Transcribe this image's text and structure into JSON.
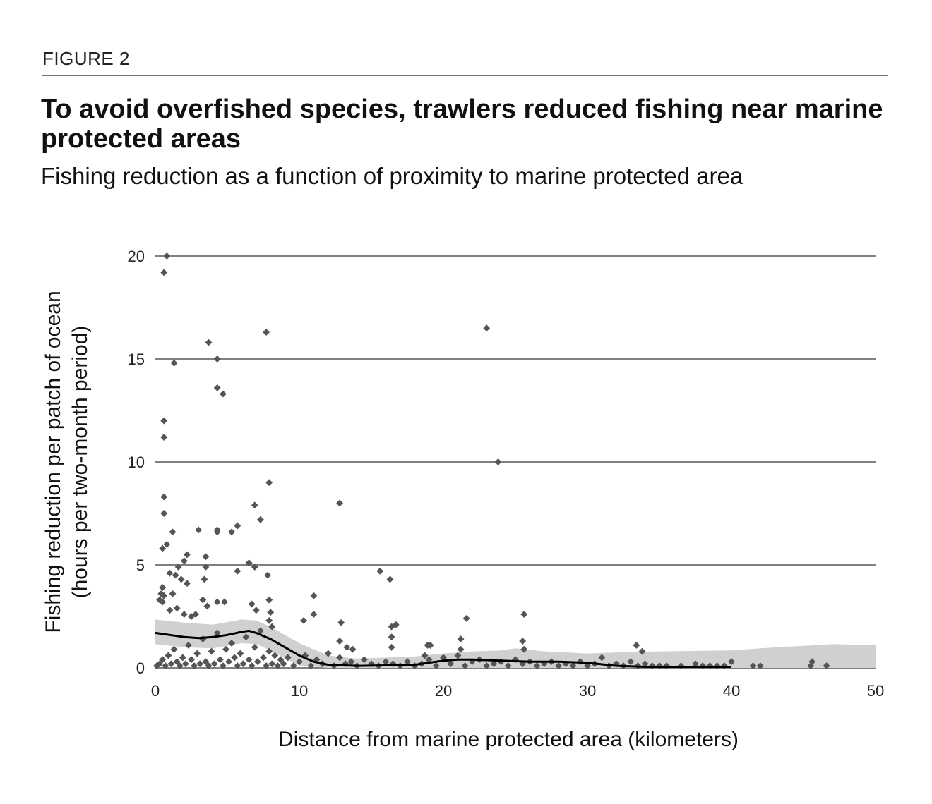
{
  "figure_label": "FIGURE 2",
  "chart_data": {
    "type": "scatter",
    "title": "To avoid overfished species, trawlers reduced fishing near marine protected areas",
    "subtitle": "Fishing reduction as a function of proximity to marine protected area",
    "xlabel": "Distance from marine protected area (kilometers)",
    "ylabel_line1": "Fishing reduction per patch of ocean",
    "ylabel_line2": "(hours per two-month period)",
    "xlim": [
      0,
      50
    ],
    "ylim": [
      0,
      20
    ],
    "x_ticks": [
      0,
      10,
      20,
      30,
      40,
      50
    ],
    "y_ticks": [
      0,
      5,
      10,
      15,
      20
    ],
    "grid": "horizontal",
    "colors": {
      "points": "#555555",
      "trend": "#000000",
      "band": "#d0d0d0",
      "grid": "#808080"
    },
    "points": [
      [
        0.8,
        20
      ],
      [
        0.6,
        19.2
      ],
      [
        1.3,
        14.8
      ],
      [
        0.6,
        12
      ],
      [
        0.6,
        11.2
      ],
      [
        0.6,
        8.3
      ],
      [
        0.6,
        7.5
      ],
      [
        0.8,
        6
      ],
      [
        0.5,
        5.8
      ],
      [
        1.2,
        6.6
      ],
      [
        1.6,
        4.9
      ],
      [
        1.4,
        4.5
      ],
      [
        1.0,
        4.6
      ],
      [
        2.0,
        5.2
      ],
      [
        2.2,
        5.5
      ],
      [
        1.8,
        4.3
      ],
      [
        2.2,
        4.1
      ],
      [
        0.5,
        3.9
      ],
      [
        0.4,
        3.6
      ],
      [
        0.3,
        3.3
      ],
      [
        0.6,
        3.5
      ],
      [
        1.2,
        3.6
      ],
      [
        0.5,
        3.2
      ],
      [
        1.0,
        2.8
      ],
      [
        1.5,
        2.9
      ],
      [
        2.0,
        2.6
      ],
      [
        2.5,
        2.5
      ],
      [
        2.8,
        2.6
      ],
      [
        3.0,
        6.7
      ],
      [
        3.5,
        5.4
      ],
      [
        3.5,
        4.9
      ],
      [
        3.4,
        4.3
      ],
      [
        3.3,
        3.3
      ],
      [
        3.6,
        3.0
      ],
      [
        3.7,
        15.8
      ],
      [
        4.3,
        15.0
      ],
      [
        4.3,
        13.6
      ],
      [
        4.7,
        13.3
      ],
      [
        4.3,
        6.7
      ],
      [
        4.3,
        6.6
      ],
      [
        5.3,
        6.6
      ],
      [
        5.7,
        6.9
      ],
      [
        4.3,
        3.2
      ],
      [
        4.8,
        3.2
      ],
      [
        5.7,
        4.7
      ],
      [
        6.5,
        5.1
      ],
      [
        6.9,
        4.9
      ],
      [
        7.0,
        2.8
      ],
      [
        6.7,
        3.1
      ],
      [
        6.9,
        7.9
      ],
      [
        7.3,
        7.2
      ],
      [
        7.7,
        16.3
      ],
      [
        7.9,
        9.0
      ],
      [
        7.8,
        4.5
      ],
      [
        7.9,
        3.3
      ],
      [
        8.0,
        2.7
      ],
      [
        8.1,
        2.0
      ],
      [
        7.9,
        2.3
      ],
      [
        11.0,
        3.5
      ],
      [
        10.3,
        2.3
      ],
      [
        11.0,
        2.6
      ],
      [
        12.8,
        8.0
      ],
      [
        12.9,
        2.2
      ],
      [
        12.8,
        1.3
      ],
      [
        13.3,
        1.0
      ],
      [
        13.7,
        0.9
      ],
      [
        15.6,
        4.7
      ],
      [
        16.3,
        4.3
      ],
      [
        16.4,
        2.0
      ],
      [
        16.7,
        2.1
      ],
      [
        16.4,
        1.5
      ],
      [
        16.4,
        1.0
      ],
      [
        18.9,
        1.1
      ],
      [
        19.1,
        1.1
      ],
      [
        18.7,
        0.6
      ],
      [
        21.2,
        1.4
      ],
      [
        21.6,
        2.4
      ],
      [
        21.2,
        0.9
      ],
      [
        23.0,
        16.5
      ],
      [
        23.8,
        10.0
      ],
      [
        25.6,
        2.6
      ],
      [
        25.5,
        1.3
      ],
      [
        25.6,
        0.9
      ],
      [
        33.4,
        1.1
      ],
      [
        33.8,
        0.8
      ],
      [
        40.0,
        0.3
      ],
      [
        45.6,
        0.3
      ],
      [
        46.6,
        0.1
      ],
      [
        0.1,
        0.1
      ],
      [
        0.3,
        0.2
      ],
      [
        0.5,
        0.4
      ],
      [
        0.7,
        0.1
      ],
      [
        0.9,
        0.6
      ],
      [
        1.1,
        0.2
      ],
      [
        1.3,
        0.9
      ],
      [
        1.5,
        0.3
      ],
      [
        1.7,
        0.1
      ],
      [
        1.9,
        0.5
      ],
      [
        2.1,
        0.2
      ],
      [
        2.3,
        1.1
      ],
      [
        2.5,
        0.4
      ],
      [
        2.7,
        0.1
      ],
      [
        2.9,
        0.7
      ],
      [
        3.1,
        0.2
      ],
      [
        3.3,
        1.4
      ],
      [
        3.5,
        0.3
      ],
      [
        3.7,
        0.1
      ],
      [
        3.9,
        0.8
      ],
      [
        4.1,
        0.2
      ],
      [
        4.3,
        1.7
      ],
      [
        4.5,
        0.4
      ],
      [
        4.7,
        0.1
      ],
      [
        4.9,
        0.9
      ],
      [
        5.1,
        0.3
      ],
      [
        5.3,
        1.2
      ],
      [
        5.5,
        0.5
      ],
      [
        5.7,
        0.1
      ],
      [
        5.9,
        0.7
      ],
      [
        6.1,
        0.2
      ],
      [
        6.3,
        1.5
      ],
      [
        6.5,
        0.4
      ],
      [
        6.7,
        0.1
      ],
      [
        6.9,
        1.0
      ],
      [
        7.1,
        0.3
      ],
      [
        7.3,
        1.8
      ],
      [
        7.5,
        0.5
      ],
      [
        7.7,
        0.1
      ],
      [
        7.9,
        0.8
      ],
      [
        8.1,
        0.2
      ],
      [
        8.3,
        0.6
      ],
      [
        8.5,
        0.1
      ],
      [
        8.7,
        0.4
      ],
      [
        8.9,
        0.2
      ],
      [
        9.2,
        0.5
      ],
      [
        9.6,
        0.1
      ],
      [
        10.0,
        0.3
      ],
      [
        10.4,
        0.6
      ],
      [
        10.8,
        0.1
      ],
      [
        11.2,
        0.4
      ],
      [
        11.6,
        0.2
      ],
      [
        12.0,
        0.7
      ],
      [
        12.4,
        0.1
      ],
      [
        12.8,
        0.5
      ],
      [
        13.2,
        0.2
      ],
      [
        13.6,
        0.3
      ],
      [
        14.0,
        0.1
      ],
      [
        14.5,
        0.4
      ],
      [
        15.0,
        0.2
      ],
      [
        15.5,
        0.1
      ],
      [
        16.0,
        0.3
      ],
      [
        16.5,
        0.2
      ],
      [
        17.0,
        0.1
      ],
      [
        17.5,
        0.3
      ],
      [
        18.0,
        0.1
      ],
      [
        18.5,
        0.2
      ],
      [
        19.0,
        0.4
      ],
      [
        19.5,
        0.1
      ],
      [
        20.0,
        0.5
      ],
      [
        20.5,
        0.2
      ],
      [
        21.0,
        0.6
      ],
      [
        21.5,
        0.1
      ],
      [
        22.0,
        0.3
      ],
      [
        22.5,
        0.4
      ],
      [
        23.0,
        0.1
      ],
      [
        23.5,
        0.2
      ],
      [
        24.0,
        0.3
      ],
      [
        24.5,
        0.1
      ],
      [
        25.0,
        0.4
      ],
      [
        25.5,
        0.2
      ],
      [
        26.0,
        0.3
      ],
      [
        26.5,
        0.1
      ],
      [
        27.0,
        0.2
      ],
      [
        27.5,
        0.3
      ],
      [
        28.0,
        0.1
      ],
      [
        28.5,
        0.2
      ],
      [
        29.0,
        0.1
      ],
      [
        29.5,
        0.3
      ],
      [
        30.0,
        0.1
      ],
      [
        30.5,
        0.2
      ],
      [
        31.0,
        0.5
      ],
      [
        31.5,
        0.1
      ],
      [
        32.0,
        0.2
      ],
      [
        32.5,
        0.1
      ],
      [
        33.0,
        0.3
      ],
      [
        33.5,
        0.1
      ],
      [
        34.0,
        0.2
      ],
      [
        34.5,
        0.1
      ],
      [
        35.0,
        0.1
      ],
      [
        35.5,
        0.1
      ],
      [
        36.5,
        0.1
      ],
      [
        37.5,
        0.2
      ],
      [
        38.0,
        0.1
      ],
      [
        38.5,
        0.1
      ],
      [
        39.0,
        0.1
      ],
      [
        39.5,
        0.1
      ],
      [
        41.5,
        0.1
      ],
      [
        42.0,
        0.1
      ],
      [
        45.5,
        0.1
      ]
    ],
    "trend": [
      [
        0,
        1.7
      ],
      [
        1,
        1.6
      ],
      [
        2,
        1.5
      ],
      [
        3,
        1.45
      ],
      [
        4,
        1.5
      ],
      [
        5,
        1.6
      ],
      [
        6,
        1.75
      ],
      [
        6.5,
        1.8
      ],
      [
        7,
        1.7
      ],
      [
        8,
        1.4
      ],
      [
        9,
        1.0
      ],
      [
        10,
        0.6
      ],
      [
        11,
        0.3
      ],
      [
        12,
        0.15
      ],
      [
        14,
        0.1
      ],
      [
        16,
        0.12
      ],
      [
        18,
        0.15
      ],
      [
        19,
        0.25
      ],
      [
        20,
        0.35
      ],
      [
        21,
        0.4
      ],
      [
        22,
        0.4
      ],
      [
        24,
        0.35
      ],
      [
        26,
        0.3
      ],
      [
        28,
        0.3
      ],
      [
        30,
        0.25
      ],
      [
        32,
        0.1
      ],
      [
        34,
        0.05
      ],
      [
        36,
        0.05
      ],
      [
        40,
        0.05
      ]
    ],
    "band_upper": [
      [
        0,
        2.35
      ],
      [
        2,
        2.2
      ],
      [
        4,
        2.1
      ],
      [
        6,
        2.35
      ],
      [
        7,
        2.3
      ],
      [
        8,
        2.0
      ],
      [
        10,
        1.2
      ],
      [
        12,
        0.6
      ],
      [
        14,
        0.45
      ],
      [
        16,
        0.5
      ],
      [
        18,
        0.55
      ],
      [
        20,
        0.7
      ],
      [
        22,
        0.8
      ],
      [
        24,
        0.85
      ],
      [
        25,
        0.95
      ],
      [
        27,
        0.8
      ],
      [
        30,
        0.7
      ],
      [
        32,
        0.75
      ],
      [
        35,
        0.8
      ],
      [
        40,
        0.85
      ],
      [
        42,
        0.95
      ],
      [
        47,
        1.15
      ],
      [
        50,
        1.1
      ]
    ],
    "band_lower": [
      [
        0,
        1.15
      ],
      [
        2,
        1.0
      ],
      [
        4,
        0.95
      ],
      [
        6,
        1.2
      ],
      [
        7,
        1.15
      ],
      [
        8,
        0.85
      ],
      [
        10,
        0.1
      ],
      [
        12,
        0.0
      ],
      [
        50,
        0.0
      ]
    ]
  }
}
